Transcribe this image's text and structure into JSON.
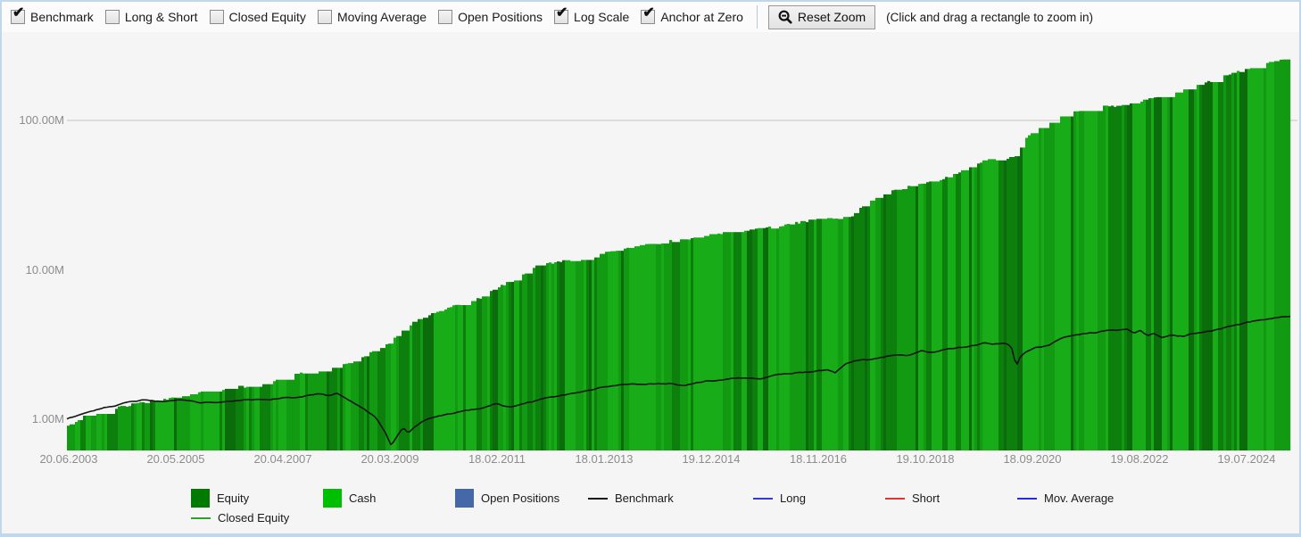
{
  "toolbar": {
    "checkboxes": [
      {
        "label": "Benchmark",
        "checked": true
      },
      {
        "label": "Long & Short",
        "checked": false
      },
      {
        "label": "Closed Equity",
        "checked": false
      },
      {
        "label": "Moving Average",
        "checked": false
      },
      {
        "label": "Open Positions",
        "checked": false
      },
      {
        "label": "Log Scale",
        "checked": true
      },
      {
        "label": "Anchor at Zero",
        "checked": true
      }
    ],
    "reset_zoom_label": "Reset Zoom",
    "hint": "(Click and drag a rectangle to zoom in)"
  },
  "icons": {
    "checkmark": "✔",
    "zoom_out": "magnifier-minus"
  },
  "chart_data": {
    "type": "area",
    "subtype": "equity-curve with benchmark line overlay",
    "log_scale": true,
    "anchored_at_zero": true,
    "grid": "horizontal line at 100M only",
    "unit": "M",
    "ylim": [
      0.63,
      500
    ],
    "y_axis": {
      "labels": [
        {
          "text": "100.00M",
          "value": 100
        },
        {
          "text": "10.00M",
          "value": 10
        },
        {
          "text": "1.00M",
          "value": 1
        }
      ]
    },
    "x_axis": {
      "labels": [
        "20.06.2003",
        "20.05.2005",
        "20.04.2007",
        "20.03.2009",
        "18.02.2011",
        "18.01.2013",
        "19.12.2014",
        "18.11.2016",
        "19.10.2018",
        "18.09.2020",
        "19.08.2022",
        "19.07.2024"
      ]
    },
    "colors": {
      "equity": "#007A00",
      "cash": "#00BE00",
      "bar_shades": [
        "#18AD18",
        "#129B12",
        "#0C7F0C",
        "#0A6C0A"
      ],
      "benchmark": "#141414",
      "grid": "#DCDCDC",
      "background": "#F5F5F5"
    },
    "series": [
      {
        "name": "Equity/Cash",
        "style": "striped green area, anchored at bottom",
        "points_t_value_millions": [
          [
            0.0,
            0.91
          ],
          [
            0.012,
            1.03
          ],
          [
            0.027,
            1.1
          ],
          [
            0.042,
            1.2
          ],
          [
            0.056,
            1.28
          ],
          [
            0.071,
            1.33
          ],
          [
            0.085,
            1.39
          ],
          [
            0.1,
            1.47
          ],
          [
            0.114,
            1.55
          ],
          [
            0.129,
            1.6
          ],
          [
            0.144,
            1.66
          ],
          [
            0.158,
            1.73
          ],
          [
            0.173,
            1.86
          ],
          [
            0.187,
            1.99
          ],
          [
            0.202,
            2.1
          ],
          [
            0.216,
            2.22
          ],
          [
            0.231,
            2.38
          ],
          [
            0.246,
            2.77
          ],
          [
            0.26,
            3.13
          ],
          [
            0.275,
            3.95
          ],
          [
            0.286,
            4.66
          ],
          [
            0.297,
            5.06
          ],
          [
            0.311,
            5.58
          ],
          [
            0.333,
            6.23
          ],
          [
            0.355,
            7.86
          ],
          [
            0.37,
            9.02
          ],
          [
            0.384,
            10.8
          ],
          [
            0.406,
            11.4
          ],
          [
            0.421,
            11.7
          ],
          [
            0.442,
            13.1
          ],
          [
            0.457,
            14.0
          ],
          [
            0.479,
            15.0
          ],
          [
            0.493,
            15.6
          ],
          [
            0.515,
            16.5
          ],
          [
            0.53,
            17.5
          ],
          [
            0.552,
            18.2
          ],
          [
            0.566,
            18.7
          ],
          [
            0.588,
            20.0
          ],
          [
            0.603,
            21.2
          ],
          [
            0.625,
            22.0
          ],
          [
            0.639,
            22.6
          ],
          [
            0.65,
            26.3
          ],
          [
            0.661,
            30.7
          ],
          [
            0.676,
            34.2
          ],
          [
            0.69,
            36.7
          ],
          [
            0.712,
            39.4
          ],
          [
            0.723,
            43.2
          ],
          [
            0.734,
            48.3
          ],
          [
            0.749,
            54.0
          ],
          [
            0.763,
            55.5
          ],
          [
            0.776,
            57.0
          ],
          [
            0.781,
            71.0
          ],
          [
            0.789,
            86.0
          ],
          [
            0.8,
            95.5
          ],
          [
            0.821,
            115
          ],
          [
            0.843,
            123
          ],
          [
            0.858,
            126
          ],
          [
            0.88,
            137
          ],
          [
            0.894,
            147
          ],
          [
            0.916,
            166
          ],
          [
            0.931,
            180
          ],
          [
            0.953,
            207
          ],
          [
            0.967,
            228
          ],
          [
            0.985,
            250
          ],
          [
            1.0,
            269
          ]
        ]
      },
      {
        "name": "Benchmark",
        "style": "black line",
        "points_t_value_millions": [
          [
            0.0,
            1.0
          ],
          [
            0.02,
            1.13
          ],
          [
            0.049,
            1.28
          ],
          [
            0.063,
            1.32
          ],
          [
            0.078,
            1.28
          ],
          [
            0.093,
            1.32
          ],
          [
            0.107,
            1.28
          ],
          [
            0.122,
            1.26
          ],
          [
            0.144,
            1.32
          ],
          [
            0.165,
            1.33
          ],
          [
            0.18,
            1.39
          ],
          [
            0.195,
            1.43
          ],
          [
            0.206,
            1.49
          ],
          [
            0.213,
            1.43
          ],
          [
            0.22,
            1.49
          ],
          [
            0.231,
            1.33
          ],
          [
            0.242,
            1.18
          ],
          [
            0.253,
            1.0
          ],
          [
            0.26,
            0.81
          ],
          [
            0.265,
            0.66
          ],
          [
            0.27,
            0.76
          ],
          [
            0.275,
            0.87
          ],
          [
            0.279,
            0.79
          ],
          [
            0.285,
            0.88
          ],
          [
            0.291,
            0.96
          ],
          [
            0.3,
            1.03
          ],
          [
            0.311,
            1.06
          ],
          [
            0.326,
            1.12
          ],
          [
            0.34,
            1.16
          ],
          [
            0.351,
            1.25
          ],
          [
            0.362,
            1.18
          ],
          [
            0.371,
            1.25
          ],
          [
            0.384,
            1.33
          ],
          [
            0.402,
            1.41
          ],
          [
            0.421,
            1.49
          ],
          [
            0.439,
            1.62
          ],
          [
            0.457,
            1.69
          ],
          [
            0.475,
            1.73
          ],
          [
            0.493,
            1.76
          ],
          [
            0.504,
            1.71
          ],
          [
            0.515,
            1.8
          ],
          [
            0.537,
            1.88
          ],
          [
            0.559,
            1.93
          ],
          [
            0.568,
            1.86
          ],
          [
            0.577,
            1.96
          ],
          [
            0.595,
            2.01
          ],
          [
            0.61,
            2.07
          ],
          [
            0.621,
            2.13
          ],
          [
            0.628,
            2.04
          ],
          [
            0.636,
            2.31
          ],
          [
            0.647,
            2.48
          ],
          [
            0.661,
            2.51
          ],
          [
            0.676,
            2.62
          ],
          [
            0.687,
            2.65
          ],
          [
            0.698,
            2.85
          ],
          [
            0.706,
            2.77
          ],
          [
            0.719,
            2.88
          ],
          [
            0.734,
            3.0
          ],
          [
            0.749,
            3.18
          ],
          [
            0.757,
            3.13
          ],
          [
            0.767,
            3.18
          ],
          [
            0.772,
            3.0
          ],
          [
            0.776,
            2.19
          ],
          [
            0.778,
            2.48
          ],
          [
            0.783,
            2.73
          ],
          [
            0.792,
            2.96
          ],
          [
            0.803,
            3.09
          ],
          [
            0.814,
            3.44
          ],
          [
            0.825,
            3.59
          ],
          [
            0.84,
            3.74
          ],
          [
            0.854,
            3.9
          ],
          [
            0.866,
            3.95
          ],
          [
            0.872,
            3.74
          ],
          [
            0.878,
            3.9
          ],
          [
            0.883,
            3.59
          ],
          [
            0.889,
            3.74
          ],
          [
            0.895,
            3.49
          ],
          [
            0.903,
            3.69
          ],
          [
            0.912,
            3.64
          ],
          [
            0.923,
            3.85
          ],
          [
            0.936,
            4.0
          ],
          [
            0.949,
            4.17
          ],
          [
            0.963,
            4.35
          ],
          [
            0.978,
            4.54
          ],
          [
            0.993,
            4.73
          ],
          [
            1.0,
            4.85
          ]
        ]
      }
    ]
  },
  "legend": {
    "rows": [
      [
        {
          "label": "Equity",
          "swatch": "square",
          "color": "#007A00"
        },
        {
          "label": "Cash",
          "swatch": "square",
          "color": "#00BE00"
        },
        {
          "label": "Open Positions",
          "swatch": "square",
          "color": "#4569A8"
        },
        {
          "label": "Benchmark",
          "swatch": "line",
          "color": "#1A1A1A"
        },
        {
          "label": "Long",
          "swatch": "line",
          "color": "#3A3AC8"
        },
        {
          "label": "Short",
          "swatch": "line",
          "color": "#D23A3A"
        },
        {
          "label": "Mov. Average",
          "swatch": "line",
          "color": "#2B2BD8"
        }
      ],
      [
        {
          "label": "Closed Equity",
          "swatch": "line",
          "color": "#2F9E2F"
        }
      ]
    ]
  }
}
